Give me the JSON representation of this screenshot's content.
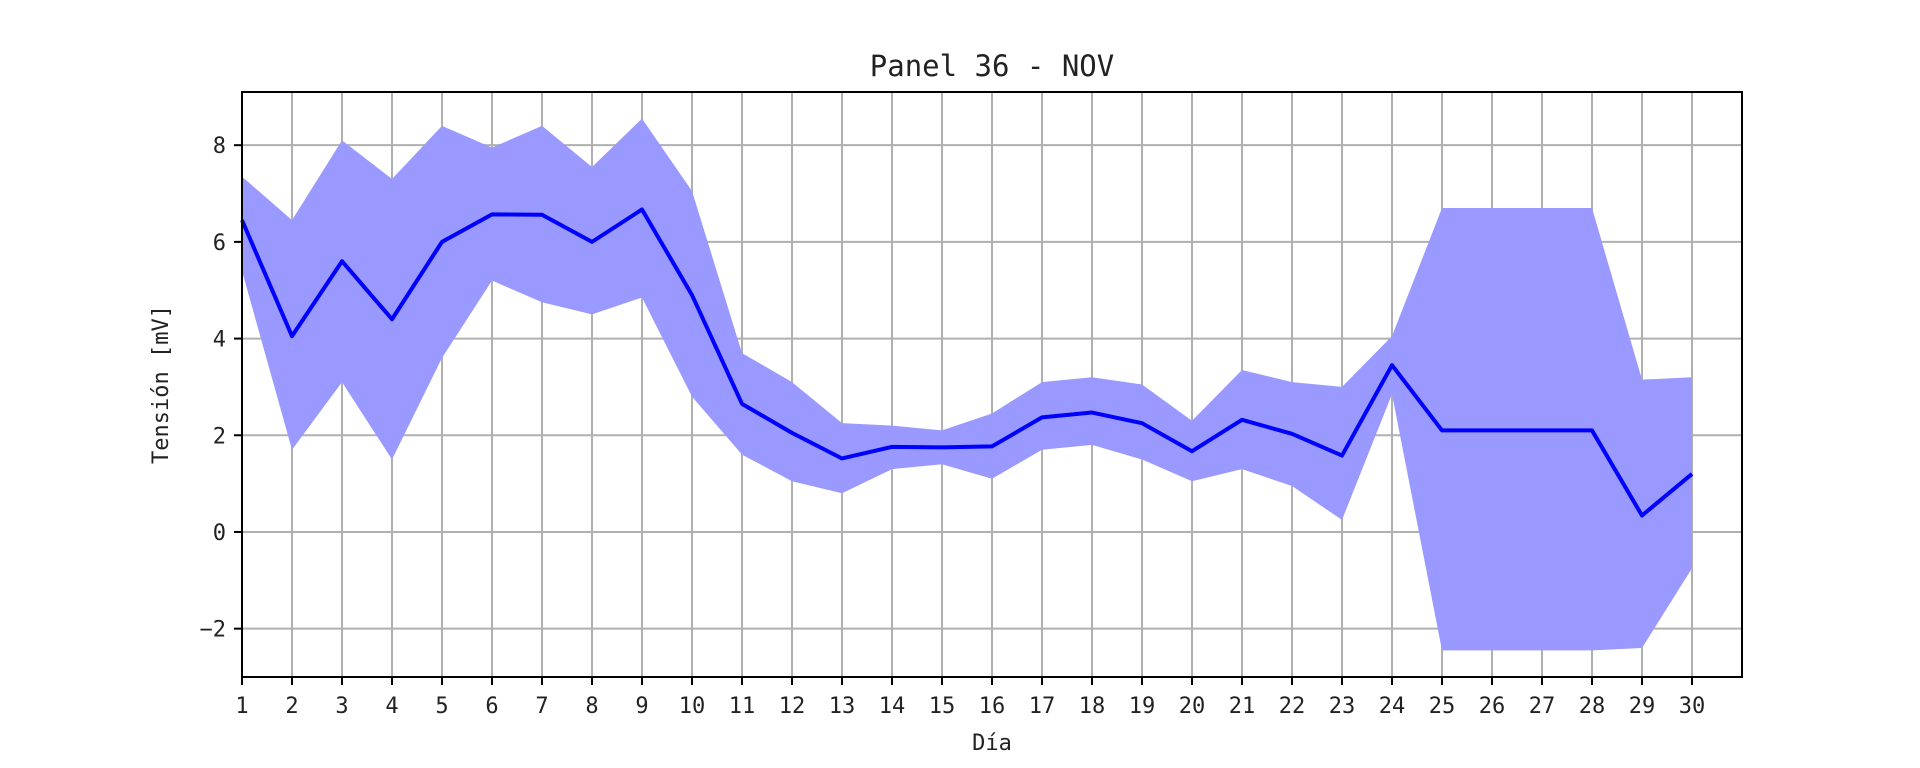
{
  "chart_data": {
    "type": "line",
    "title": "Panel 36 - NOV",
    "xlabel": "Día",
    "ylabel": "Tensión [mV]",
    "xlim": [
      1,
      31
    ],
    "ylim": [
      -3,
      9.1
    ],
    "grid": true,
    "x": [
      1,
      2,
      3,
      4,
      5,
      6,
      7,
      8,
      9,
      10,
      11,
      12,
      13,
      14,
      15,
      16,
      17,
      18,
      19,
      20,
      21,
      22,
      23,
      24,
      25,
      26,
      27,
      28,
      29,
      30
    ],
    "x_tick_labels": [
      "1",
      "2",
      "3",
      "4",
      "5",
      "6",
      "7",
      "8",
      "9",
      "10",
      "11",
      "12",
      "13",
      "14",
      "15",
      "16",
      "17",
      "18",
      "19",
      "20",
      "21",
      "22",
      "23",
      "24",
      "25",
      "26",
      "27",
      "28",
      "29",
      "30"
    ],
    "y_ticks": [
      -2,
      0,
      2,
      4,
      6,
      8
    ],
    "y_tick_labels": [
      "−2",
      "0",
      "2",
      "4",
      "6",
      "8"
    ],
    "series": [
      {
        "kind": "line",
        "color": "#0000ff",
        "values": [
          6.45,
          4.05,
          5.6,
          4.4,
          6.0,
          6.57,
          6.56,
          6.0,
          6.67,
          4.9,
          2.65,
          2.05,
          1.52,
          1.76,
          1.75,
          1.77,
          2.37,
          2.47,
          2.25,
          1.67,
          2.32,
          2.03,
          1.58,
          3.45,
          2.1,
          2.1,
          2.1,
          2.1,
          0.34,
          1.2
        ]
      },
      {
        "kind": "band",
        "color": "#9999ff",
        "upper": [
          7.35,
          6.45,
          8.1,
          7.3,
          8.4,
          7.95,
          8.4,
          7.55,
          8.55,
          7.05,
          3.7,
          3.1,
          2.25,
          2.2,
          2.1,
          2.45,
          3.1,
          3.2,
          3.05,
          2.3,
          3.35,
          3.1,
          3.0,
          4.05,
          6.7,
          6.7,
          6.7,
          6.7,
          3.15,
          3.2
        ],
        "lower": [
          5.4,
          1.7,
          3.1,
          1.5,
          3.6,
          5.2,
          4.75,
          4.5,
          4.85,
          2.8,
          1.6,
          1.05,
          0.8,
          1.3,
          1.4,
          1.1,
          1.7,
          1.8,
          1.5,
          1.05,
          1.3,
          0.95,
          0.25,
          2.85,
          -2.45,
          -2.45,
          -2.45,
          -2.45,
          -2.4,
          -0.75
        ]
      }
    ]
  }
}
